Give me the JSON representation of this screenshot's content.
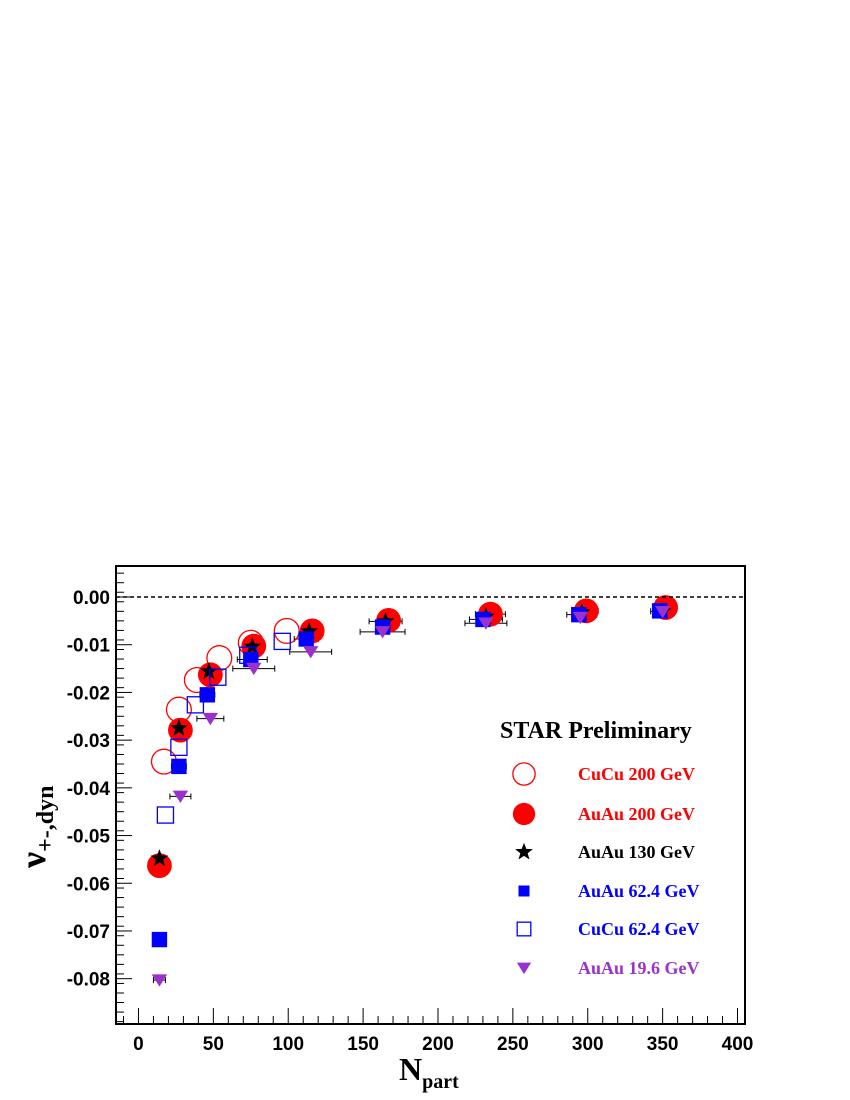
{
  "chart_data": {
    "type": "scatter",
    "xlabel": "N",
    "xlabel_sub": "part",
    "ylabel": "ν",
    "ylabel_sub": "+-,dyn",
    "xlim": [
      -15,
      405
    ],
    "ylim": [
      -0.0895,
      0.0065
    ],
    "x_ticks": [
      0,
      50,
      100,
      150,
      200,
      250,
      300,
      350,
      400
    ],
    "x_tick_labels": [
      "0",
      "50",
      "100",
      "150",
      "200",
      "250",
      "300",
      "350",
      "400"
    ],
    "y_ticks": [
      0.0,
      -0.01,
      -0.02,
      -0.03,
      -0.04,
      -0.05,
      -0.06,
      -0.07,
      -0.08
    ],
    "y_tick_labels": [
      "0.00",
      "-0.01",
      "-0.02",
      "-0.03",
      "-0.04",
      "-0.05",
      "-0.06",
      "-0.07",
      "-0.08"
    ],
    "reference_line_y": 0.0,
    "grid": false,
    "legend_title": "STAR Preliminary",
    "legend_position": "right",
    "series": [
      {
        "name": "CuCu 200 GeV",
        "marker": "open-circle",
        "color": "#ff0000",
        "points": [
          [
            17,
            -0.0345
          ],
          [
            27,
            -0.0236
          ],
          [
            39,
            -0.0174
          ],
          [
            54,
            -0.0128
          ],
          [
            75,
            -0.0096
          ],
          [
            99,
            -0.0071
          ]
        ]
      },
      {
        "name": "AuAu 200 GeV",
        "marker": "filled-circle",
        "color": "#ff0000",
        "points": [
          [
            14,
            -0.0563
          ],
          [
            28,
            -0.0279
          ],
          [
            48,
            -0.0163
          ],
          [
            77,
            -0.0103
          ],
          [
            116,
            -0.0071
          ],
          [
            167,
            -0.0049
          ],
          [
            235,
            -0.0036
          ],
          [
            299,
            -0.0029
          ],
          [
            352,
            -0.0022
          ]
        ]
      },
      {
        "name": "AuAu 130 GeV",
        "marker": "star",
        "color": "#000000",
        "points": [
          [
            14,
            -0.0548
          ],
          [
            27,
            -0.0275
          ],
          [
            47,
            -0.0156
          ],
          [
            76,
            -0.0104
          ],
          [
            114,
            -0.0072
          ],
          [
            165,
            -0.0051
          ],
          [
            232,
            -0.0041
          ],
          [
            296,
            -0.0032
          ],
          [
            350,
            -0.003
          ]
        ]
      },
      {
        "name": "AuAu 62.4 GeV",
        "marker": "filled-square",
        "color": "#0000ff",
        "points": [
          [
            14,
            -0.0718
          ],
          [
            27,
            -0.0355
          ],
          [
            46,
            -0.0205
          ],
          [
            75,
            -0.0131
          ],
          [
            112,
            -0.0088
          ],
          [
            163,
            -0.0063
          ],
          [
            230,
            -0.0047
          ],
          [
            294,
            -0.0037
          ],
          [
            348,
            -0.0029
          ]
        ]
      },
      {
        "name": "CuCu 62.4 GeV",
        "marker": "open-square",
        "color": "#0000ff",
        "points": [
          [
            18,
            -0.0457
          ],
          [
            27,
            -0.0315
          ],
          [
            38,
            -0.0226
          ],
          [
            53,
            -0.0168
          ],
          [
            73,
            -0.0122
          ],
          [
            96,
            -0.0093
          ]
        ]
      },
      {
        "name": "AuAu 19.6 GeV",
        "marker": "filled-triangle-down",
        "color": "#9932cc",
        "points": [
          [
            14,
            -0.0803
          ],
          [
            28,
            -0.0418
          ],
          [
            48,
            -0.0255
          ],
          [
            77,
            -0.015
          ],
          [
            115,
            -0.0115
          ],
          [
            163,
            -0.0073
          ],
          [
            232,
            -0.0055
          ],
          [
            295,
            -0.0043
          ],
          [
            350,
            -0.0031
          ]
        ]
      }
    ],
    "error_bars": [
      {
        "x": 14,
        "y": -0.0803,
        "xerr": 4
      },
      {
        "x": 14,
        "y": -0.0548,
        "xerr": 3
      },
      {
        "x": 28,
        "y": -0.0418,
        "xerr": 7
      },
      {
        "x": 28,
        "y": -0.0275,
        "xerr": 3
      },
      {
        "x": 27,
        "y": -0.0355,
        "xerr": 5
      },
      {
        "x": 48,
        "y": -0.0255,
        "xerr": 9
      },
      {
        "x": 47,
        "y": -0.0156,
        "xerr": 5
      },
      {
        "x": 46,
        "y": -0.0205,
        "xerr": 5
      },
      {
        "x": 77,
        "y": -0.015,
        "xerr": 14
      },
      {
        "x": 76,
        "y": -0.0131,
        "xerr": 10
      },
      {
        "x": 112,
        "y": -0.0088,
        "xerr": 8
      },
      {
        "x": 115,
        "y": -0.0115,
        "xerr": 14
      },
      {
        "x": 116,
        "y": -0.0071,
        "xerr": 7
      },
      {
        "x": 165,
        "y": -0.0051,
        "xerr": 11
      },
      {
        "x": 163,
        "y": -0.0073,
        "xerr": 15
      },
      {
        "x": 232,
        "y": -0.0047,
        "xerr": 11
      },
      {
        "x": 232,
        "y": -0.0055,
        "xerr": 14
      },
      {
        "x": 235,
        "y": -0.0036,
        "xerr": 10
      },
      {
        "x": 296,
        "y": -0.0037,
        "xerr": 10
      },
      {
        "x": 299,
        "y": -0.0029,
        "xerr": 8
      },
      {
        "x": 350,
        "y": -0.003,
        "xerr": 8
      }
    ]
  }
}
